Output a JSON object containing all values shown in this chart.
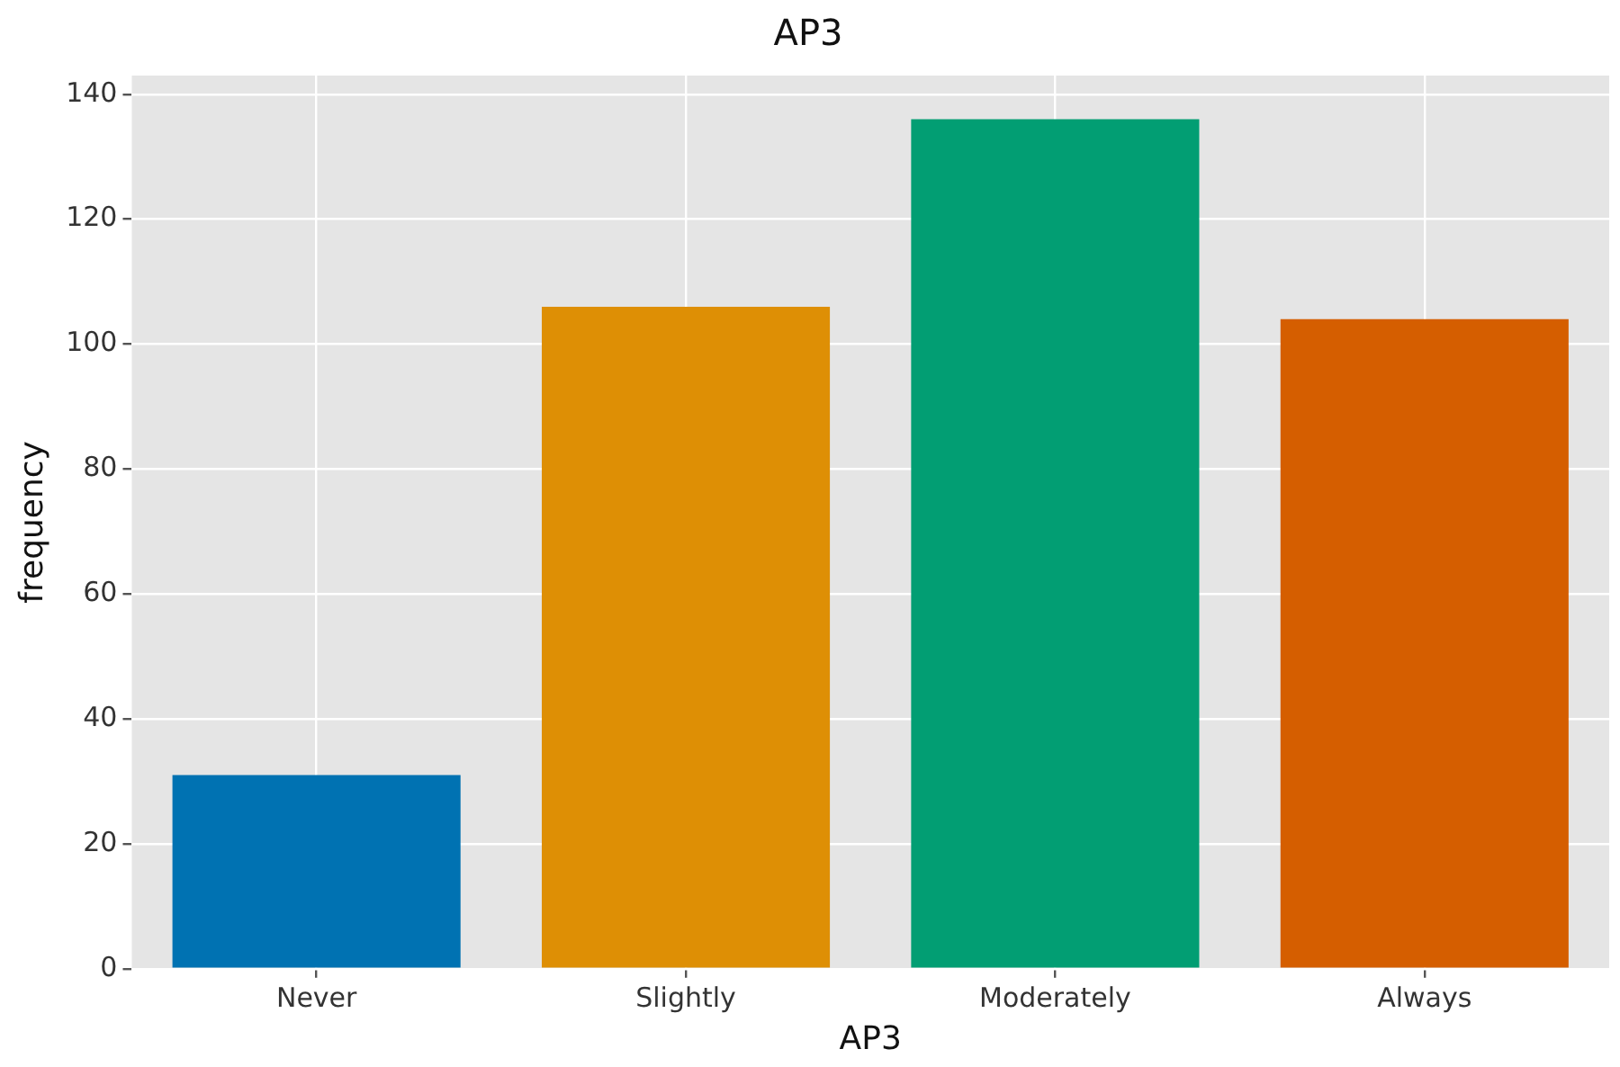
{
  "chart_data": {
    "type": "bar",
    "title": "AP3",
    "xlabel": "AP3",
    "ylabel": "frequency",
    "categories": [
      "Never",
      "Slightly",
      "Moderately",
      "Always"
    ],
    "values": [
      31,
      106,
      136,
      104
    ],
    "colors": [
      "#0072b2",
      "#de8f05",
      "#029e73",
      "#d55e00"
    ],
    "ylim": [
      0,
      143
    ],
    "yticks": [
      0,
      20,
      40,
      60,
      80,
      100,
      120,
      140
    ],
    "grid": true
  }
}
